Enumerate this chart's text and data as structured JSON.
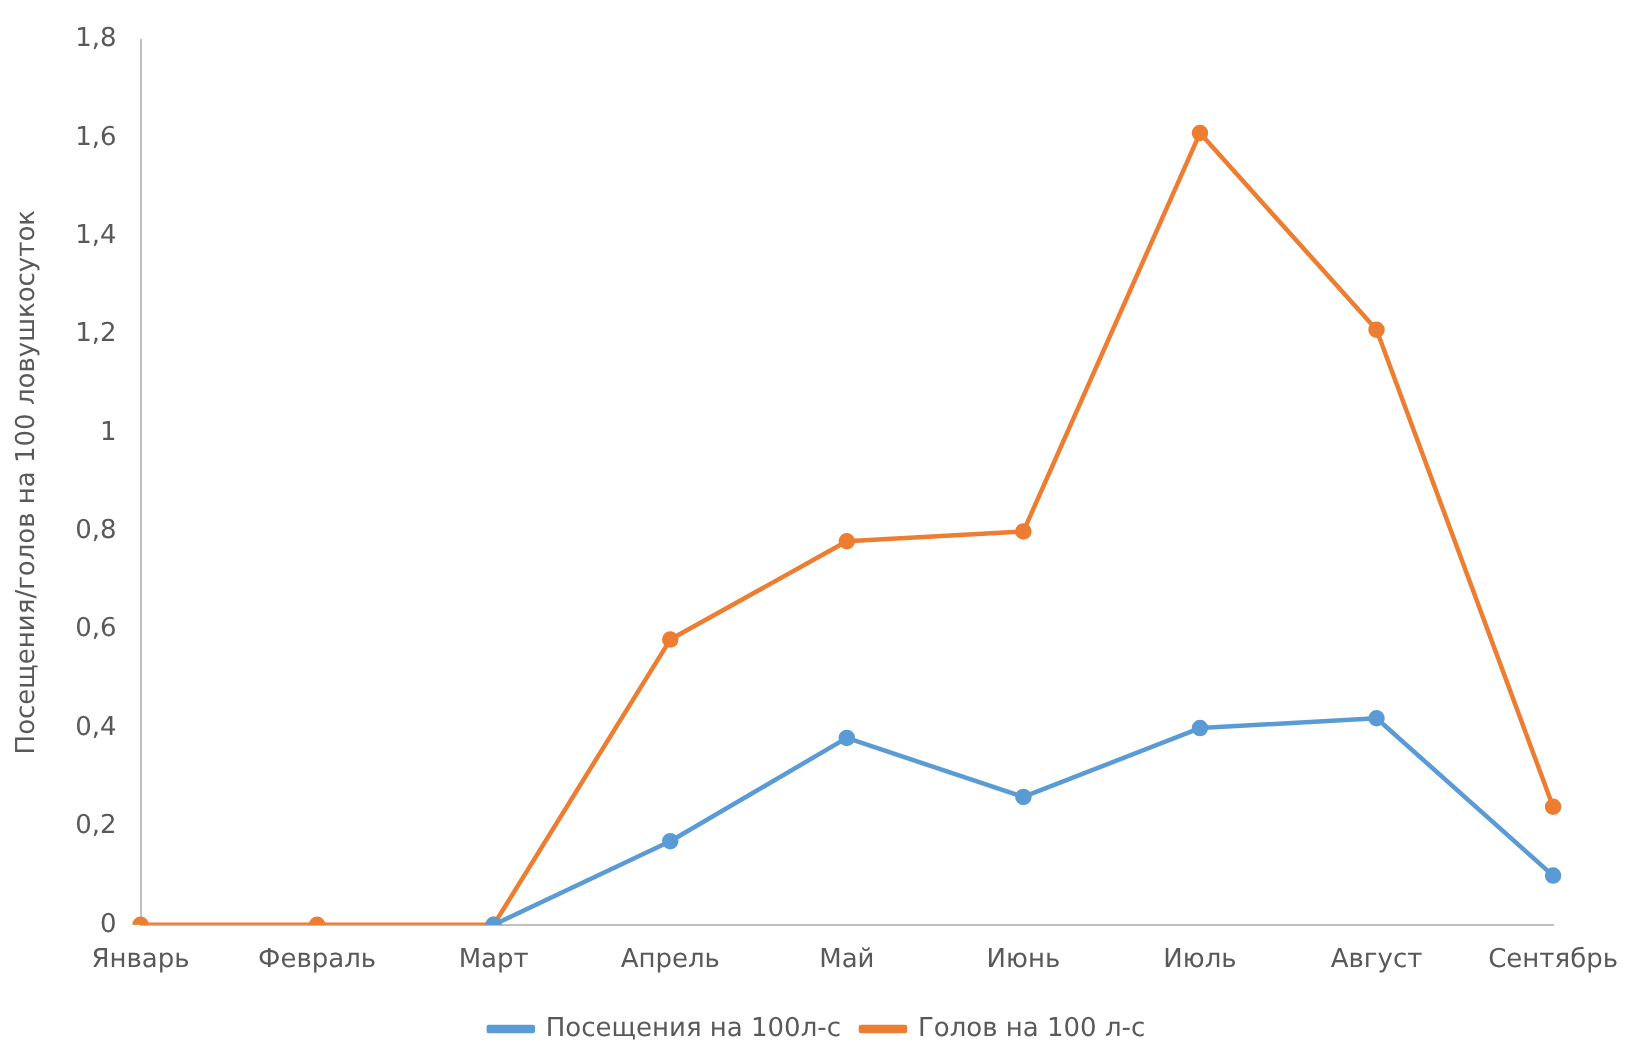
{
  "chart_data": {
    "type": "line",
    "ylabel": "Посещения/голов на 100 ловушкосуток",
    "categories": [
      "Январь",
      "Февраль",
      "Март",
      "Апрель",
      "Май",
      "Июнь",
      "Июль",
      "Август",
      "Сентябрь"
    ],
    "series": [
      {
        "name": "Посещения на 100л-с",
        "color": "#5b9bd5",
        "values": [
          null,
          null,
          0,
          0.17,
          0.38,
          0.26,
          0.4,
          0.42,
          0.1
        ]
      },
      {
        "name": "Голов на 100 л-с",
        "color": "#ed7d31",
        "values": [
          0,
          0,
          0,
          0.58,
          0.78,
          0.8,
          1.61,
          1.21,
          0.24
        ]
      }
    ],
    "ylim": [
      0,
      1.8
    ],
    "yticks": [
      {
        "value": 0,
        "label": "0"
      },
      {
        "value": 0.2,
        "label": "0,2"
      },
      {
        "value": 0.4,
        "label": "0,4"
      },
      {
        "value": 0.6,
        "label": "0,6"
      },
      {
        "value": 0.8,
        "label": "0,8"
      },
      {
        "value": 1,
        "label": "1"
      },
      {
        "value": 1.2,
        "label": "1,2"
      },
      {
        "value": 1.4,
        "label": "1,4"
      },
      {
        "value": 1.6,
        "label": "1,6"
      },
      {
        "value": 1.8,
        "label": "1,8"
      }
    ],
    "grid": false,
    "legend": "bottom",
    "marker": "circle",
    "line_style": "solid"
  }
}
